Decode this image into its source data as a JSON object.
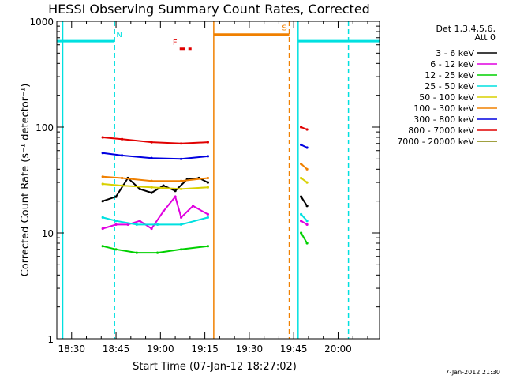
{
  "chart_data": {
    "type": "line",
    "title": "HESSI Observing Summary Count Rates, Corrected",
    "xlabel": "Start Time (07-Jan-12 18:27:02)",
    "ylabel": "Corrected Count Rate (s⁻¹ detector⁻¹)",
    "yscale": "log",
    "ylim": [
      1,
      1000
    ],
    "xlim_minutes_from_1827": [
      -2,
      107
    ],
    "xticks": [
      {
        "label": "18:30",
        "min": 3
      },
      {
        "label": "18:45",
        "min": 18
      },
      {
        "label": "19:00",
        "min": 33
      },
      {
        "label": "19:15",
        "min": 48
      },
      {
        "label": "19:30",
        "min": 63
      },
      {
        "label": "19:45",
        "min": 78
      },
      {
        "label": "20:00",
        "min": 93
      }
    ],
    "yticks": [
      {
        "label": "1",
        "value": 1
      },
      {
        "label": "10",
        "value": 10
      },
      {
        "label": "100",
        "value": 100
      },
      {
        "label": "1000",
        "value": 1000
      }
    ],
    "legend": {
      "header": [
        "Det 1,3,4,5,6,",
        "Att 0"
      ],
      "placement": "right"
    },
    "series": [
      {
        "name": "3 - 6 keV",
        "color": "#000000",
        "segments": [
          {
            "x": [
              13.5,
              18,
              22,
              26,
              30,
              34,
              38,
              42,
              46,
              49
            ],
            "y": [
              20,
              22,
              33,
              26,
              24,
              28,
              25,
              32,
              33,
              30
            ]
          },
          {
            "x": [
              80.5,
              82.5
            ],
            "y": [
              22,
              18
            ]
          }
        ]
      },
      {
        "name": "6 - 12 keV",
        "color": "#e000e0",
        "segments": [
          {
            "x": [
              13.5,
              18,
              22,
              26,
              30,
              34,
              38,
              40,
              44,
              49
            ],
            "y": [
              11,
              12,
              12,
              13,
              11,
              16,
              22,
              14,
              18,
              15
            ]
          },
          {
            "x": [
              80.5,
              82.5
            ],
            "y": [
              13,
              12
            ]
          }
        ]
      },
      {
        "name": "12 - 25 keV",
        "color": "#00d000",
        "segments": [
          {
            "x": [
              13.5,
              18,
              25,
              32,
              40,
              49
            ],
            "y": [
              7.5,
              7,
              6.5,
              6.5,
              7,
              7.5
            ]
          },
          {
            "x": [
              80.5,
              82.5
            ],
            "y": [
              10,
              8
            ]
          }
        ]
      },
      {
        "name": "25 - 50 keV",
        "color": "#00e0e0",
        "segments": [
          {
            "x": [
              13.5,
              18,
              25,
              32,
              40,
              49
            ],
            "y": [
              14,
              13,
              12,
              12,
              12,
              14
            ]
          },
          {
            "x": [
              80.5,
              82.5
            ],
            "y": [
              15,
              13
            ]
          }
        ]
      },
      {
        "name": "50 - 100 keV",
        "color": "#d8d000",
        "segments": [
          {
            "x": [
              13.5,
              20,
              30,
              40,
              49
            ],
            "y": [
              29,
              28,
              27,
              26,
              27
            ]
          },
          {
            "x": [
              80.5,
              82.5
            ],
            "y": [
              33,
              30
            ]
          }
        ]
      },
      {
        "name": "100 - 300 keV",
        "color": "#f08000",
        "segments": [
          {
            "x": [
              13.5,
              20,
              30,
              40,
              49
            ],
            "y": [
              34,
              33,
              31,
              31,
              33
            ]
          },
          {
            "x": [
              80.5,
              82.5
            ],
            "y": [
              45,
              40
            ]
          }
        ]
      },
      {
        "name": "300 - 800 keV",
        "color": "#0000e0",
        "segments": [
          {
            "x": [
              13.5,
              20,
              30,
              40,
              49
            ],
            "y": [
              57,
              54,
              51,
              50,
              53
            ]
          },
          {
            "x": [
              80.5,
              82.5
            ],
            "y": [
              68,
              64
            ]
          }
        ]
      },
      {
        "name": "800 - 7000 keV",
        "color": "#e00000",
        "segments": [
          {
            "x": [
              13.5,
              20,
              30,
              40,
              49
            ],
            "y": [
              80,
              77,
              72,
              70,
              72
            ]
          },
          {
            "x": [
              80.5,
              82.5
            ],
            "y": [
              100,
              95
            ]
          }
        ]
      },
      {
        "name": "7000 - 20000 keV",
        "color": "#808000",
        "segments": []
      }
    ],
    "flags": [
      {
        "label": "N",
        "color": "#00e0e0",
        "level": 650,
        "intervals": [
          [
            -2,
            17.5
          ],
          [
            79.5,
            107
          ]
        ]
      },
      {
        "label": "F",
        "color": "#e00000",
        "level": 550,
        "intervals": [
          [
            39.5,
            43.5
          ]
        ],
        "dashed": true
      },
      {
        "label": "S",
        "color": "#f08000",
        "level": 750,
        "intervals": [
          [
            51,
            76.5
          ]
        ]
      }
    ],
    "markers": [
      {
        "min": 0,
        "color": "#00e0e0",
        "style": "solid"
      },
      {
        "min": 17.5,
        "color": "#00e0e0",
        "style": "dashed"
      },
      {
        "min": 79.5,
        "color": "#00e0e0",
        "style": "solid"
      },
      {
        "min": 96.5,
        "color": "#00e0e0",
        "style": "dashed"
      },
      {
        "min": 51,
        "color": "#f08000",
        "style": "solid"
      },
      {
        "min": 76.5,
        "color": "#f08000",
        "style": "dashed"
      }
    ]
  },
  "footer": {
    "timestamp": "7-Jan-2012 21:30"
  }
}
